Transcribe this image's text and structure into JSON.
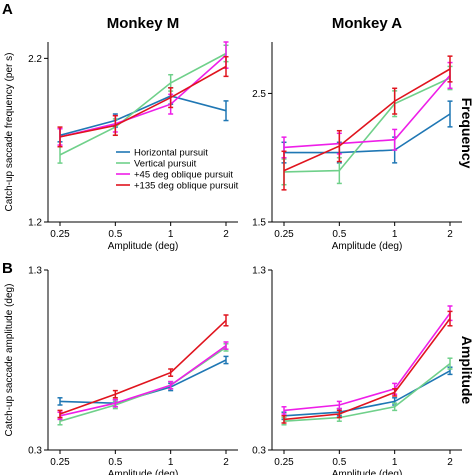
{
  "figure": {
    "panel_labels": [
      "A",
      "B"
    ],
    "column_titles": [
      "Monkey M",
      "Monkey A"
    ],
    "row_titles": [
      "Frequency",
      "Amplitude"
    ]
  },
  "colors": {
    "Horizontal pursuit": "#1f77b4",
    "Vertical pursuit": "#6fd08a",
    "+45 deg oblique pursuit": "#ee1ee8",
    "+135 deg oblique pursuit": "#e0141e"
  },
  "chart_data": [
    {
      "type": "line",
      "panel": "A",
      "title": "Monkey M",
      "xlabel": "Amplitude (deg)",
      "ylabel": "Catch-up saccade frequency (per s)",
      "x": [
        0.25,
        0.5,
        1,
        2
      ],
      "x_tick_labels": [
        "0.25",
        "0.5",
        "1",
        "2"
      ],
      "y_ticks": [
        1.2,
        2.2
      ],
      "ylim": [
        1.2,
        2.3
      ],
      "legend": "lower-right",
      "series": [
        {
          "name": "Horizontal pursuit",
          "values": [
            1.73,
            1.82,
            1.97,
            1.88
          ],
          "errors": [
            0.04,
            0.04,
            0.05,
            0.06
          ]
        },
        {
          "name": "Vertical pursuit",
          "values": [
            1.61,
            1.78,
            2.05,
            2.23
          ],
          "errors": [
            0.05,
            0.05,
            0.05,
            0.05
          ]
        },
        {
          "name": "+45 deg oblique pursuit",
          "values": [
            1.72,
            1.8,
            1.92,
            2.22
          ],
          "errors": [
            0.05,
            0.05,
            0.06,
            0.08
          ]
        },
        {
          "name": "+135 deg oblique pursuit",
          "values": [
            1.72,
            1.79,
            1.96,
            2.15
          ],
          "errors": [
            0.06,
            0.06,
            0.06,
            0.06
          ]
        }
      ]
    },
    {
      "type": "line",
      "panel": "A",
      "title": "Monkey A",
      "xlabel": "Amplitude (deg)",
      "ylabel": "",
      "x": [
        0.25,
        0.5,
        1,
        2
      ],
      "x_tick_labels": [
        "0.25",
        "0.5",
        "1",
        "2"
      ],
      "y_ticks": [
        1.5,
        2.5
      ],
      "ylim": [
        1.5,
        2.9
      ],
      "legend": "none",
      "series": [
        {
          "name": "Horizontal pursuit",
          "values": [
            2.04,
            2.04,
            2.06,
            2.34
          ],
          "errors": [
            0.08,
            0.08,
            0.1,
            0.1
          ]
        },
        {
          "name": "Vertical pursuit",
          "values": [
            1.89,
            1.9,
            2.42,
            2.62
          ],
          "errors": [
            0.1,
            0.1,
            0.1,
            0.09
          ]
        },
        {
          "name": "+45 deg oblique pursuit",
          "values": [
            2.08,
            2.11,
            2.14,
            2.64
          ],
          "errors": [
            0.08,
            0.08,
            0.08,
            0.1
          ]
        },
        {
          "name": "+135 deg oblique pursuit",
          "values": [
            1.9,
            2.09,
            2.44,
            2.69
          ],
          "errors": [
            0.15,
            0.12,
            0.1,
            0.1
          ]
        }
      ]
    },
    {
      "type": "line",
      "panel": "B",
      "title": "",
      "xlabel": "Amplitude (deg)",
      "ylabel": "Catch-up saccade amplitude (deg)",
      "x": [
        0.25,
        0.5,
        1,
        2
      ],
      "x_tick_labels": [
        "0.25",
        "0.5",
        "1",
        "2"
      ],
      "y_ticks": [
        0.3,
        1.3
      ],
      "ylim": [
        0.3,
        1.3
      ],
      "legend": "none",
      "series": [
        {
          "name": "Horizontal pursuit",
          "values": [
            0.57,
            0.56,
            0.65,
            0.8
          ],
          "errors": [
            0.02,
            0.02,
            0.02,
            0.02
          ]
        },
        {
          "name": "Vertical pursuit",
          "values": [
            0.46,
            0.55,
            0.66,
            0.87
          ],
          "errors": [
            0.02,
            0.02,
            0.02,
            0.02
          ]
        },
        {
          "name": "+45 deg oblique pursuit",
          "values": [
            0.49,
            0.56,
            0.66,
            0.88
          ],
          "errors": [
            0.02,
            0.02,
            0.02,
            0.02
          ]
        },
        {
          "name": "+135 deg oblique pursuit",
          "values": [
            0.5,
            0.61,
            0.73,
            1.02
          ],
          "errors": [
            0.02,
            0.02,
            0.02,
            0.03
          ]
        }
      ]
    },
    {
      "type": "line",
      "panel": "B",
      "title": "",
      "xlabel": "Amplitude (deg)",
      "ylabel": "",
      "x": [
        0.25,
        0.5,
        1,
        2
      ],
      "x_tick_labels": [
        "0.25",
        "0.5",
        "1",
        "2"
      ],
      "y_ticks": [
        0.3,
        1.3
      ],
      "ylim": [
        0.3,
        1.3
      ],
      "legend": "none",
      "series": [
        {
          "name": "Horizontal pursuit",
          "values": [
            0.49,
            0.51,
            0.57,
            0.74
          ],
          "errors": [
            0.02,
            0.02,
            0.02,
            0.02
          ]
        },
        {
          "name": "Vertical pursuit",
          "values": [
            0.46,
            0.48,
            0.54,
            0.78
          ],
          "errors": [
            0.02,
            0.02,
            0.02,
            0.03
          ]
        },
        {
          "name": "+45 deg oblique pursuit",
          "values": [
            0.52,
            0.55,
            0.64,
            1.06
          ],
          "errors": [
            0.02,
            0.02,
            0.03,
            0.04
          ]
        },
        {
          "name": "+135 deg oblique pursuit",
          "values": [
            0.47,
            0.5,
            0.62,
            1.03
          ],
          "errors": [
            0.02,
            0.02,
            0.02,
            0.04
          ]
        }
      ]
    }
  ]
}
